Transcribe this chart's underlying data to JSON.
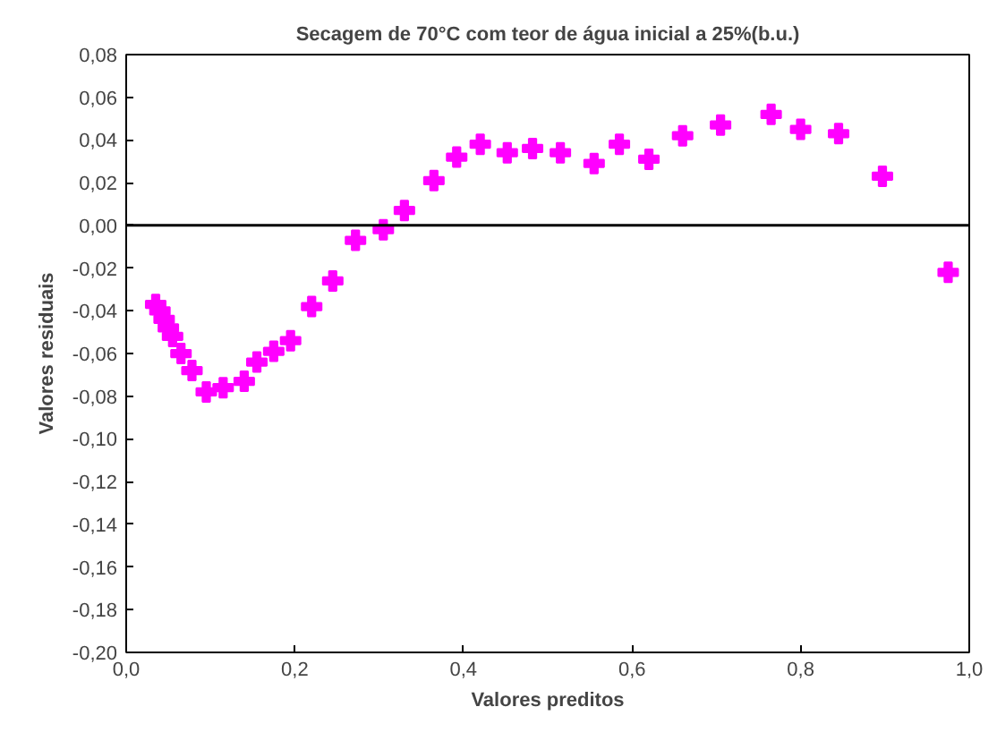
{
  "chart_data": {
    "type": "scatter",
    "title": "Secagem de 70°C com teor de água inicial a 25%(b.u.)",
    "xlabel": "Valores preditos",
    "ylabel": "Valores residuais",
    "x": [
      0.035,
      0.04,
      0.045,
      0.05,
      0.055,
      0.065,
      0.078,
      0.095,
      0.115,
      0.14,
      0.155,
      0.175,
      0.195,
      0.22,
      0.245,
      0.272,
      0.305,
      0.33,
      0.365,
      0.392,
      0.42,
      0.452,
      0.482,
      0.515,
      0.555,
      0.585,
      0.62,
      0.66,
      0.705,
      0.765,
      0.8,
      0.845,
      0.897,
      0.975
    ],
    "series": [
      {
        "color": "#ff00ff",
        "values": [
          -0.037,
          -0.04,
          -0.044,
          -0.048,
          -0.052,
          -0.06,
          -0.068,
          -0.078,
          -0.076,
          -0.073,
          -0.064,
          -0.059,
          -0.054,
          -0.038,
          -0.026,
          -0.007,
          -0.002,
          0.007,
          0.021,
          0.032,
          0.038,
          0.034,
          0.036,
          0.034,
          0.029,
          0.038,
          0.031,
          0.042,
          0.047,
          0.052,
          0.045,
          0.043,
          0.023,
          -0.022
        ]
      }
    ],
    "xlim": [
      0,
      1
    ],
    "ylim": [
      -0.2,
      0.08
    ],
    "xticks": [
      {
        "value": 0,
        "label": "0,0"
      },
      {
        "value": 0.2,
        "label": "0,2"
      },
      {
        "value": 0.4,
        "label": "0,4"
      },
      {
        "value": 0.6,
        "label": "0,6"
      },
      {
        "value": 0.8,
        "label": "0,8"
      },
      {
        "value": 1,
        "label": "1,0"
      }
    ],
    "yticks": [
      {
        "value": -0.2,
        "label": "-0,20"
      },
      {
        "value": -0.18,
        "label": "-0,18"
      },
      {
        "value": -0.16,
        "label": "-0,16"
      },
      {
        "value": -0.14,
        "label": "-0,14"
      },
      {
        "value": -0.12,
        "label": "-0,12"
      },
      {
        "value": -0.1,
        "label": "-0,10"
      },
      {
        "value": -0.08,
        "label": "-0,08"
      },
      {
        "value": -0.06,
        "label": "-0,06"
      },
      {
        "value": -0.04,
        "label": "-0,04"
      },
      {
        "value": -0.02,
        "label": "-0,02"
      },
      {
        "value": 0,
        "label": "0,00"
      },
      {
        "value": 0.02,
        "label": "0,02"
      },
      {
        "value": 0.04,
        "label": "0,04"
      },
      {
        "value": 0.06,
        "label": "0,06"
      },
      {
        "value": 0.08,
        "label": "0,08"
      }
    ],
    "ref_lines": [
      {
        "axis": "y",
        "value": 0,
        "color": "#000000"
      }
    ],
    "marker": "cross",
    "grid": false
  }
}
